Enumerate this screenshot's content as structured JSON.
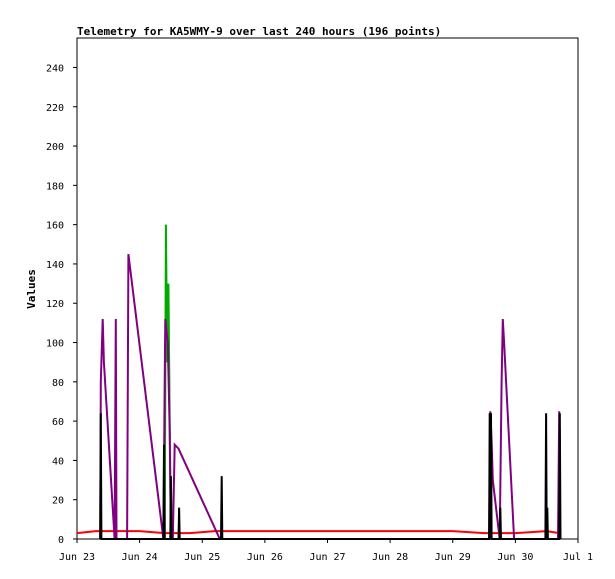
{
  "chart_data": {
    "type": "line",
    "title": "Telemetry for KA5WMY-9 over last 240 hours (196 points)",
    "xlabel": "",
    "ylabel": "Values",
    "xlim": [
      0,
      8
    ],
    "ylim": [
      0,
      255
    ],
    "x_ticks": [
      {
        "value": 0,
        "label": "Jun 23"
      },
      {
        "value": 1,
        "label": "Jun 24"
      },
      {
        "value": 2,
        "label": "Jun 25"
      },
      {
        "value": 3,
        "label": "Jun 26"
      },
      {
        "value": 4,
        "label": "Jun 27"
      },
      {
        "value": 5,
        "label": "Jun 28"
      },
      {
        "value": 6,
        "label": "Jun 29"
      },
      {
        "value": 7,
        "label": "Jun 30"
      },
      {
        "value": 8,
        "label": "Jul 1"
      }
    ],
    "y_ticks": [
      0,
      20,
      40,
      60,
      80,
      100,
      120,
      140,
      160,
      180,
      200,
      220,
      240
    ],
    "grid": false,
    "legend": "none",
    "series": [
      {
        "color": "#ff0000",
        "x": [
          0.0,
          0.3,
          0.6,
          1.0,
          1.4,
          1.8,
          2.2,
          2.6,
          3.0,
          4.0,
          5.0,
          6.0,
          6.5,
          7.0,
          7.5,
          7.7
        ],
        "y": [
          3,
          4,
          4,
          4,
          3,
          3,
          4,
          4,
          4,
          4,
          4,
          4,
          3,
          3,
          4,
          3
        ]
      },
      {
        "color": "#00aa00",
        "x": [
          1.4,
          1.42,
          1.44,
          1.46,
          1.48,
          1.5
        ],
        "y": [
          0,
          160,
          90,
          130,
          60,
          0
        ]
      },
      {
        "color": "#800080",
        "x": [
          0.37,
          0.38,
          0.41,
          0.43,
          0.6,
          0.62,
          0.63,
          0.8,
          0.82,
          0.84,
          1.38,
          1.4,
          1.41,
          1.43,
          1.45,
          1.48,
          1.5,
          1.53,
          1.56,
          1.59,
          1.62,
          2.28,
          2.3,
          6.58,
          6.6,
          6.62,
          6.64,
          6.75,
          6.78,
          6.8,
          6.82,
          6.98,
          7.0,
          7.68,
          7.7,
          7.71
        ],
        "y": [
          0,
          80,
          112,
          90,
          0,
          112,
          0,
          0,
          145,
          140,
          0,
          80,
          112,
          105,
          100,
          55,
          0,
          0,
          48,
          47,
          46,
          0,
          0,
          0,
          65,
          50,
          30,
          0,
          80,
          112,
          100,
          0,
          0,
          0,
          65,
          48
        ]
      },
      {
        "color": "#000000",
        "x": [
          0.37,
          0.38,
          0.39,
          1.38,
          1.39,
          1.4,
          1.49,
          1.5,
          1.51,
          1.62,
          1.63,
          1.64,
          2.3,
          2.31,
          2.32,
          6.58,
          6.59,
          6.6,
          6.61,
          6.62,
          6.75,
          6.76,
          6.77,
          7.48,
          7.49,
          7.5,
          7.51,
          7.52,
          7.7,
          7.71,
          7.72
        ],
        "y": [
          0,
          64,
          0,
          0,
          48,
          0,
          0,
          32,
          0,
          0,
          16,
          0,
          0,
          32,
          0,
          0,
          64,
          0,
          64,
          0,
          0,
          16,
          0,
          0,
          64,
          0,
          16,
          0,
          0,
          64,
          0
        ]
      }
    ]
  }
}
